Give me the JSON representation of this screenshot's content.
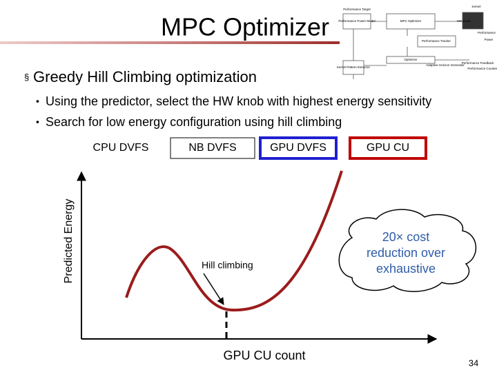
{
  "header": {
    "title": "MPC Optimizer"
  },
  "bullet": {
    "text": "Greedy Hill Climbing optimization",
    "subbullets": [
      "Using the predictor, select the HW knob with highest energy sensitivity",
      "Search for low energy configuration using hill climbing"
    ]
  },
  "knobs": [
    "CPU DVFS",
    "NB DVFS",
    "GPU DVFS",
    "GPU CU"
  ],
  "plot": {
    "y_label": "Predicted Energy",
    "x_label": "GPU CU count",
    "annotation": "Hill climbing"
  },
  "callout": {
    "lines": [
      "20× cost",
      "reduction over",
      "exhaustive"
    ]
  },
  "diagram": {
    "labels": [
      "Performance Target",
      "Kernel",
      "Performance",
      "MPC Optimizer",
      "HW knobs",
      "Performance Power Model",
      "Power",
      "Performance Tracker",
      "Optimizer",
      "Performance Feedback",
      "Adaptive Horizon Generator",
      "Kernel Pattern Extractor",
      "Performance Counters"
    ]
  },
  "footer": {
    "page_number": "34"
  }
}
